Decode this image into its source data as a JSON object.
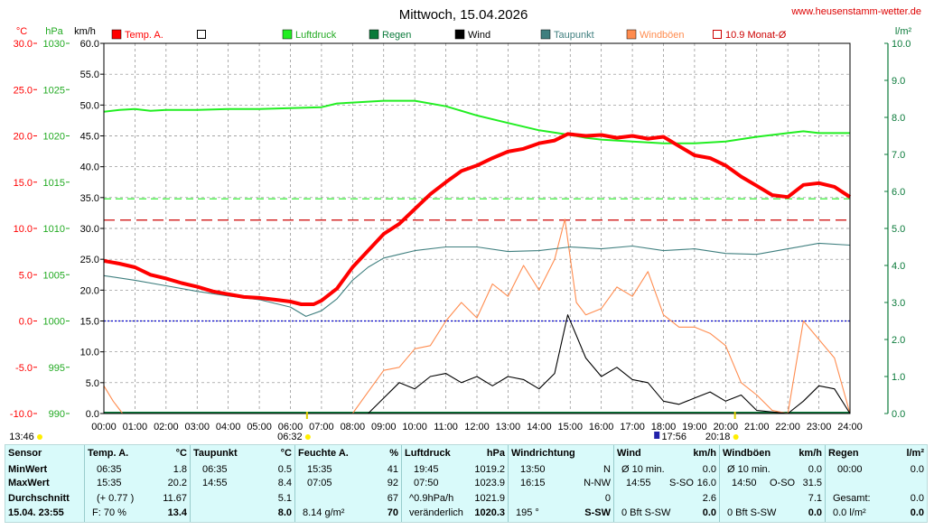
{
  "title": "Mittwoch, 15.04.2026",
  "website": "www.heusenstamm-wetter.de",
  "axis_units": {
    "temp": "°C",
    "pressure": "hPa",
    "wind": "km/h",
    "rain": "l/m²"
  },
  "colors": {
    "temp": "#ff0000",
    "pressure": "#22ee22",
    "rain": "#0a7a3a",
    "wind": "#000000",
    "dewpoint": "#3f7f7f",
    "gusts": "#ff8c4f",
    "monthly_avg": "#cc0000",
    "zero_line": "#0000cc",
    "background": "#ffffff",
    "stats_bg": "#d9fafa"
  },
  "legend": [
    {
      "label": "Temp. A.",
      "color": "#ff0000",
      "style": "filled"
    },
    {
      "label": "",
      "color": "#000000",
      "style": "empty"
    },
    {
      "label": "Luftdruck",
      "color": "#22ee22",
      "style": "filled"
    },
    {
      "label": "Regen",
      "color": "#0a7a3a",
      "style": "filled"
    },
    {
      "label": "Wind",
      "color": "#000000",
      "style": "filled"
    },
    {
      "label": "Taupunkt",
      "color": "#3f7f7f",
      "style": "filled"
    },
    {
      "label": "Windböen",
      "color": "#ff8c4f",
      "style": "filled"
    },
    {
      "label": "10.9 Monat-Ø",
      "color": "#cc0000",
      "style": "empty"
    }
  ],
  "sun_times": {
    "sunrise": "06:32",
    "sunset": "20:18",
    "day_length": "13:46",
    "moon": "17:56"
  },
  "chart_data": {
    "type": "line",
    "title": "Mittwoch, 15.04.2026",
    "x_ticks": [
      "00:00",
      "01:00",
      "02:00",
      "03:00",
      "04:00",
      "05:00",
      "06:00",
      "07:00",
      "08:00",
      "09:00",
      "10:00",
      "11:00",
      "12:00",
      "13:00",
      "14:00",
      "15:00",
      "16:00",
      "17:00",
      "18:00",
      "19:00",
      "20:00",
      "21:00",
      "22:00",
      "23:00",
      "24:00"
    ],
    "axes": {
      "temp": {
        "unit": "°C",
        "range": [
          -10,
          30
        ],
        "ticks": [
          "30.0",
          "25.0",
          "20.0",
          "15.0",
          "10.0",
          "5.0",
          "0.0",
          "-5.0",
          "-10.0"
        ]
      },
      "pressure": {
        "unit": "hPa",
        "range": [
          990,
          1030
        ],
        "ticks": [
          "1030",
          "1025",
          "1020",
          "1015",
          "1010",
          "1005",
          "1000",
          "995",
          "990"
        ]
      },
      "wind": {
        "unit": "km/h",
        "range": [
          0,
          60
        ],
        "ticks": [
          "60.0",
          "55.0",
          "50.0",
          "45.0",
          "40.0",
          "35.0",
          "30.0",
          "25.0",
          "20.0",
          "15.0",
          "10.0",
          "5.0",
          "0.0"
        ]
      },
      "rain": {
        "unit": "l/m²",
        "range": [
          0,
          10
        ],
        "ticks": [
          "10.0",
          "9.0",
          "8.0",
          "7.0",
          "6.0",
          "5.0",
          "4.0",
          "3.0",
          "2.0",
          "1.0",
          "0.0"
        ]
      }
    },
    "grid": true,
    "reference_lines": {
      "monthly_avg_temp": 10.9,
      "pressure_ref_hpa": 1013.2,
      "zero_temp": 0.0
    },
    "series": [
      {
        "name": "Temp. A.",
        "axis": "temp",
        "x": [
          0,
          0.5,
          1,
          1.5,
          2,
          2.5,
          3,
          3.5,
          4,
          4.5,
          5,
          5.5,
          6,
          6.35,
          6.75,
          7,
          7.5,
          8,
          8.5,
          9,
          9.5,
          10,
          10.5,
          11,
          11.5,
          12,
          12.5,
          13,
          13.5,
          14,
          14.5,
          14.92,
          15.5,
          16,
          16.5,
          17,
          17.5,
          18,
          18.5,
          19,
          19.5,
          20,
          20.5,
          21,
          21.5,
          22,
          22.5,
          23,
          23.5,
          24
        ],
        "y": [
          6.5,
          6.2,
          5.8,
          5.0,
          4.6,
          4.1,
          3.7,
          3.2,
          2.9,
          2.6,
          2.5,
          2.3,
          2.1,
          1.8,
          1.8,
          2.2,
          3.5,
          5.8,
          7.6,
          9.4,
          10.5,
          12.1,
          13.7,
          15.0,
          16.2,
          16.8,
          17.6,
          18.3,
          18.6,
          19.2,
          19.5,
          20.2,
          20.0,
          20.1,
          19.8,
          20.0,
          19.7,
          19.9,
          18.9,
          17.9,
          17.6,
          16.8,
          15.6,
          14.6,
          13.6,
          13.4,
          14.7,
          14.9,
          14.5,
          13.4
        ]
      },
      {
        "name": "Luftdruck",
        "axis": "pressure",
        "x": [
          0,
          0.5,
          1,
          1.5,
          2,
          3,
          4,
          5,
          6,
          7,
          7.5,
          8,
          9,
          9.5,
          10,
          11,
          12,
          13,
          14,
          15,
          15.5,
          16,
          17,
          17.5,
          18,
          19,
          19.5,
          20,
          21,
          22,
          22.5,
          23,
          24
        ],
        "y": [
          1022.6,
          1022.8,
          1022.9,
          1022.7,
          1022.8,
          1022.8,
          1022.9,
          1022.9,
          1023.0,
          1023.1,
          1023.5,
          1023.6,
          1023.8,
          1023.8,
          1023.8,
          1023.2,
          1022.2,
          1021.4,
          1020.6,
          1020.1,
          1019.8,
          1019.6,
          1019.4,
          1019.3,
          1019.2,
          1019.2,
          1019.3,
          1019.4,
          1019.9,
          1020.3,
          1020.5,
          1020.3,
          1020.3
        ]
      },
      {
        "name": "Taupunkt",
        "axis": "temp",
        "x": [
          0,
          1,
          2,
          3,
          4,
          5,
          6,
          6.5,
          7,
          7.5,
          8,
          8.5,
          9,
          9.5,
          10,
          11,
          12,
          13,
          14,
          15,
          16,
          17,
          18,
          19,
          20,
          21,
          22,
          23,
          24
        ],
        "y": [
          4.9,
          4.4,
          3.8,
          3.2,
          2.7,
          2.3,
          1.5,
          0.5,
          1.1,
          2.4,
          4.4,
          5.8,
          6.8,
          7.2,
          7.6,
          8.0,
          8.0,
          7.5,
          7.6,
          8.0,
          7.8,
          8.1,
          7.6,
          7.8,
          7.3,
          7.2,
          7.8,
          8.4,
          8.2
        ]
      },
      {
        "name": "Wind",
        "axis": "wind",
        "x": [
          0,
          8.5,
          9,
          9.5,
          10,
          10.5,
          11,
          11.5,
          12,
          12.5,
          13,
          13.5,
          14,
          14.5,
          14.92,
          15.5,
          16,
          16.5,
          17,
          17.5,
          18,
          18.5,
          19,
          19.5,
          20,
          20.5,
          21,
          22,
          22.5,
          23,
          23.5,
          24
        ],
        "y": [
          0,
          0,
          2.5,
          5.0,
          4.0,
          6.0,
          6.5,
          5.0,
          6.0,
          4.5,
          6.0,
          5.5,
          4.0,
          6.5,
          16.0,
          9.0,
          6.0,
          7.5,
          5.5,
          5.0,
          2.0,
          1.5,
          2.5,
          3.5,
          2.0,
          3.0,
          0.5,
          0,
          2.0,
          4.5,
          4.0,
          0
        ]
      },
      {
        "name": "Windböen",
        "axis": "wind",
        "x": [
          0,
          0.3,
          0.6,
          8,
          8.5,
          9,
          9.5,
          10,
          10.5,
          11,
          11.5,
          12,
          12.5,
          13,
          13.5,
          14,
          14.5,
          14.83,
          15.2,
          15.5,
          16,
          16.5,
          17,
          17.5,
          18,
          18.5,
          19,
          19.5,
          20,
          20.5,
          21,
          21.5,
          22,
          22.5,
          23,
          23.5,
          24
        ],
        "y": [
          4.5,
          2.0,
          0,
          0,
          3.5,
          7.0,
          7.5,
          10.5,
          11.0,
          15.0,
          18.0,
          15.5,
          21.0,
          19.0,
          24.0,
          20.0,
          25.0,
          31.5,
          18.0,
          16.0,
          17.0,
          20.5,
          19.0,
          23.0,
          16.0,
          14.0,
          14.0,
          13.0,
          11.0,
          5.0,
          3.0,
          0.5,
          0,
          15.0,
          12.0,
          9.0,
          0
        ]
      }
    ]
  },
  "stats": {
    "sensor": {
      "header": "Sensor",
      "min": "MinWert",
      "max": "MaxWert",
      "avg": "Durchschnitt",
      "now": "15.04. 23:55"
    },
    "temp": {
      "header": "Temp. A.",
      "unit": "°C",
      "min_time": "06:35",
      "min": "1.8",
      "max_time": "15:35",
      "max": "20.2",
      "avg_note": "(+ 0.77 )",
      "avg": "11.67",
      "now_note": "F: 70 %",
      "now": "13.4"
    },
    "dew": {
      "header": "Taupunkt",
      "unit": "°C",
      "min_time": "06:35",
      "min": "0.5",
      "max_time": "14:55",
      "max": "8.4",
      "avg": "5.1",
      "now": "8.0"
    },
    "humidity": {
      "header": "Feuchte A.",
      "unit": "%",
      "min_time": "15:35",
      "min": "41",
      "max_time": "07:05",
      "max": "92",
      "avg": "67",
      "now_note": "8.14 g/m²",
      "now": "70"
    },
    "pressure": {
      "header": "Luftdruck",
      "unit": "hPa",
      "min_time": "19:45",
      "min": "1019.2",
      "max_time": "07:50",
      "max": "1023.9",
      "avg_note": "^0.9hPa/h",
      "avg": "1021.9",
      "now_note": "veränderlich",
      "now": "1020.3"
    },
    "direction": {
      "header": "Windrichtung",
      "min_time": "13:50",
      "min": "N",
      "max_time": "16:15",
      "max": "N-NW",
      "avg": "0",
      "now_note": "195 °",
      "now": "S-SW"
    },
    "wind": {
      "header": "Wind",
      "unit": "km/h",
      "min_label": "Ø 10 min.",
      "min": "0.0",
      "max_time": "14:55",
      "max_dir": "S-SO",
      "max": "16.0",
      "avg": "2.6",
      "now_note": "0 Bft S-SW",
      "now": "0.0"
    },
    "gusts": {
      "header": "Windböen",
      "unit": "km/h",
      "min_label": "Ø 10 min.",
      "min": "0.0",
      "max_time": "14:50",
      "max_dir": "O-SO",
      "max": "31.5",
      "avg": "7.1",
      "now_note": "0 Bft S-SW",
      "now": "0.0"
    },
    "rain": {
      "header": "Regen",
      "unit": "l/m²",
      "min_time": "00:00",
      "min": "0.0",
      "total_label": "Gesamt:",
      "total": "0.0",
      "now_note": "0.0 l/m²",
      "now": "0.0"
    }
  }
}
